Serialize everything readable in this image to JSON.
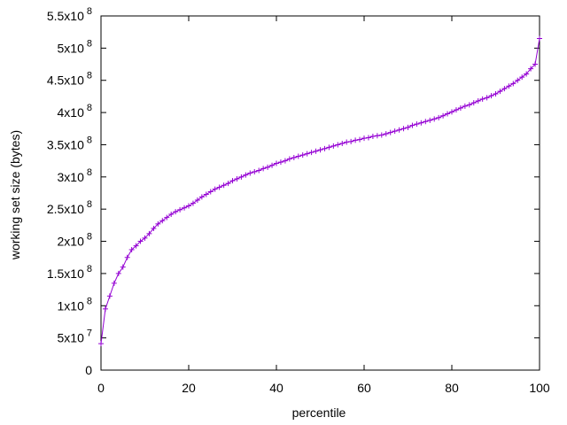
{
  "chart_data": {
    "type": "line",
    "xlabel": "percentile",
    "ylabel": "working set size (bytes)",
    "x": [
      0,
      1,
      2,
      3,
      4,
      5,
      6,
      7,
      8,
      9,
      10,
      11,
      12,
      13,
      14,
      15,
      16,
      17,
      18,
      19,
      20,
      21,
      22,
      23,
      24,
      25,
      26,
      27,
      28,
      29,
      30,
      31,
      32,
      33,
      34,
      35,
      36,
      37,
      38,
      39,
      40,
      41,
      42,
      43,
      44,
      45,
      46,
      47,
      48,
      49,
      50,
      51,
      52,
      53,
      54,
      55,
      56,
      57,
      58,
      59,
      60,
      61,
      62,
      63,
      64,
      65,
      66,
      67,
      68,
      69,
      70,
      71,
      72,
      73,
      74,
      75,
      76,
      77,
      78,
      79,
      80,
      81,
      82,
      83,
      84,
      85,
      86,
      87,
      88,
      89,
      90,
      91,
      92,
      93,
      94,
      95,
      96,
      97,
      98,
      99,
      100
    ],
    "series": [
      {
        "color": "#9400d3",
        "marker": "+",
        "values": [
          41000000,
          95000000,
          115000000,
          135000000,
          150000000,
          160000000,
          175000000,
          187000000,
          193000000,
          200000000,
          205000000,
          212000000,
          220000000,
          227000000,
          232000000,
          237000000,
          242000000,
          246000000,
          249000000,
          252000000,
          255000000,
          259000000,
          264000000,
          269000000,
          273000000,
          277000000,
          281000000,
          284000000,
          287000000,
          290000000,
          294000000,
          297000000,
          300000000,
          303000000,
          306000000,
          308000000,
          310000000,
          313000000,
          315000000,
          318000000,
          321000000,
          323000000,
          325000000,
          328000000,
          330000000,
          332000000,
          334000000,
          336000000,
          338000000,
          340000000,
          342000000,
          344000000,
          346000000,
          348000000,
          350000000,
          352000000,
          354000000,
          355000000,
          357000000,
          358000000,
          360000000,
          361000000,
          363000000,
          364000000,
          365000000,
          367000000,
          369000000,
          371000000,
          373000000,
          375000000,
          377000000,
          380000000,
          382000000,
          384000000,
          386000000,
          388000000,
          390000000,
          392000000,
          395000000,
          398000000,
          401000000,
          404000000,
          407000000,
          410000000,
          412000000,
          415000000,
          418000000,
          421000000,
          423000000,
          426000000,
          429000000,
          433000000,
          437000000,
          441000000,
          445000000,
          450000000,
          455000000,
          460000000,
          468000000,
          475000000,
          515000000
        ]
      }
    ],
    "xlim": [
      0,
      100
    ],
    "xticks": [
      0,
      20,
      40,
      60,
      80,
      100
    ],
    "ylim": [
      0,
      550000000
    ],
    "yticks": [
      0,
      {
        "value": 50000000,
        "label": "5x10",
        "exponent": "7"
      },
      {
        "value": 100000000,
        "label": "1x10",
        "exponent": "8"
      },
      {
        "value": 150000000,
        "label": "1.5x10",
        "exponent": "8"
      },
      {
        "value": 200000000,
        "label": "2x10",
        "exponent": "8"
      },
      {
        "value": 250000000,
        "label": "2.5x10",
        "exponent": "8"
      },
      {
        "value": 300000000,
        "label": "3x10",
        "exponent": "8"
      },
      {
        "value": 350000000,
        "label": "3.5x10",
        "exponent": "8"
      },
      {
        "value": 400000000,
        "label": "4x10",
        "exponent": "8"
      },
      {
        "value": 450000000,
        "label": "4.5x10",
        "exponent": "8"
      },
      {
        "value": 500000000,
        "label": "5x10",
        "exponent": "8"
      },
      {
        "value": 550000000,
        "label": "5.5x10",
        "exponent": "8"
      }
    ],
    "grid": false
  }
}
